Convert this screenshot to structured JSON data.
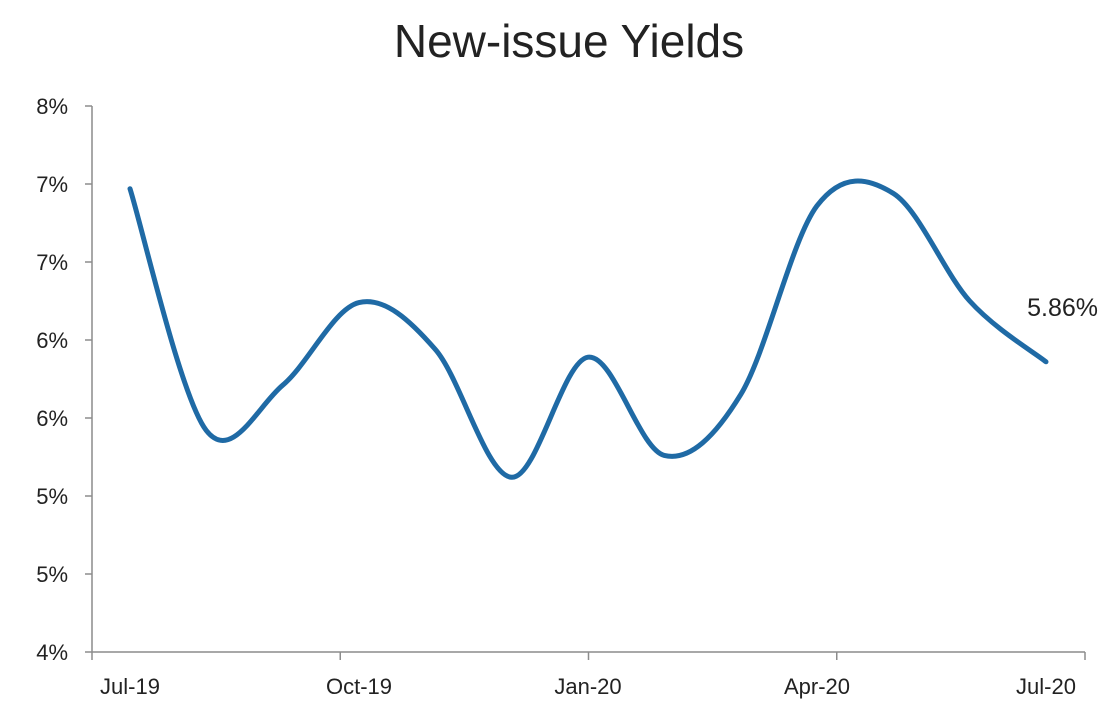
{
  "chart_data": {
    "type": "line",
    "title": "New-issue Yields",
    "xlabel": "",
    "ylabel": "",
    "x_ticks": [
      "Jul-19",
      "Oct-19",
      "Jan-20",
      "Apr-20",
      "Jul-20"
    ],
    "y_ticks": [
      "8%",
      "7%",
      "7%",
      "6%",
      "6%",
      "5%",
      "5%",
      "4%"
    ],
    "ylim": [
      4.0,
      7.5
    ],
    "grid": false,
    "legend": "none",
    "line_color": "#1f6aa5",
    "series": [
      {
        "x": [
          "Jul-19",
          "Aug-19",
          "Sep-19",
          "Oct-19",
          "Nov-19",
          "Dec-19",
          "Jan-20",
          "Feb-20",
          "Mar-20",
          "Apr-20",
          "May-20",
          "Jun-20",
          "Jul-20"
        ],
        "values": [
          6.97,
          5.42,
          5.71,
          6.24,
          5.94,
          5.12,
          5.89,
          5.26,
          5.65,
          6.86,
          6.94,
          6.25,
          5.86
        ]
      }
    ],
    "annotations": [
      {
        "text": "5.86%",
        "x": "Jul-20",
        "y": 5.86
      }
    ]
  }
}
